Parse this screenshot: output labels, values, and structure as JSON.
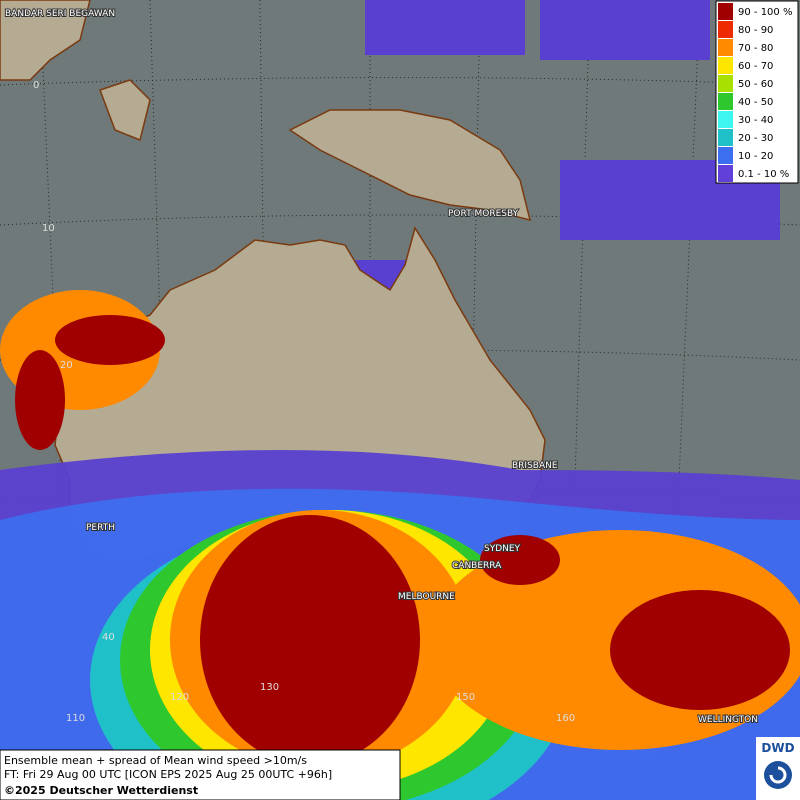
{
  "map": {
    "cities": [
      "BANDAR SERI BEGAWAN",
      "PORT MORESBY",
      "BRISBANE",
      "PERTH",
      "SYDNEY",
      "CANBERRA",
      "MELBOURNE",
      "WELLINGTON"
    ],
    "graticule_labels": [
      "0",
      "10",
      "20",
      "40",
      "110",
      "120",
      "130",
      "150",
      "160"
    ]
  },
  "legend": {
    "items": [
      {
        "label": "90 - 100 %",
        "color": "#a00000"
      },
      {
        "label": "80 - 90",
        "color": "#ee2a00"
      },
      {
        "label": "70 - 80",
        "color": "#ff8a00"
      },
      {
        "label": "60 - 70",
        "color": "#ffe600"
      },
      {
        "label": "50 - 60",
        "color": "#a8e000"
      },
      {
        "label": "40 - 50",
        "color": "#2ec82e"
      },
      {
        "label": "30 - 40",
        "color": "#3ff5f0"
      },
      {
        "label": "20 - 30",
        "color": "#20c0c8"
      },
      {
        "label": "10 - 20",
        "color": "#3c6ff0"
      },
      {
        "label": "0.1 - 10 %",
        "color": "#6040d8"
      }
    ]
  },
  "footer": {
    "lines": [
      "Ensemble mean + spread of Mean wind speed >10m/s",
      "FT: Fri 29 Aug 00 UTC [ICON EPS 2025 Aug 25 00UTC +96h]",
      "©2025 Deutscher Wetterdienst"
    ]
  },
  "logo": "DWD"
}
